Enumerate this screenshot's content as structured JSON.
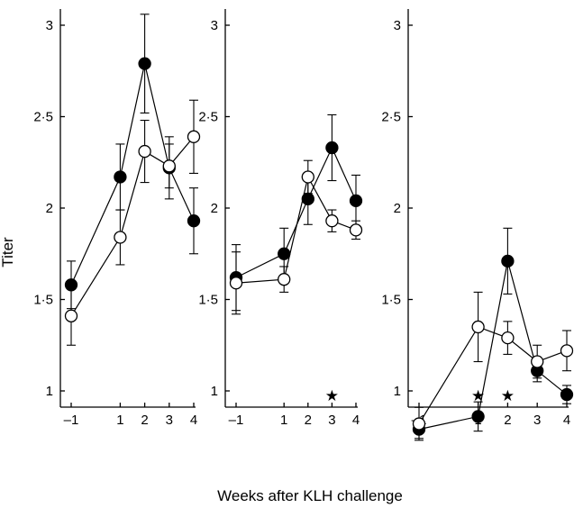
{
  "chart_data": {
    "type": "line",
    "ylabel": "Titer",
    "xlabel": "Weeks after KLH challenge",
    "xticks": [
      -1,
      1,
      2,
      3,
      4
    ],
    "xtick_labels": [
      "–1",
      "1",
      "2",
      "3",
      "4"
    ],
    "yticks": [
      1,
      1.5,
      2,
      2.5,
      3
    ],
    "ytick_labels": [
      "1",
      "1·5",
      "2",
      "2·5",
      "3"
    ],
    "ylim": [
      0.7,
      3.1
    ],
    "xlim": [
      -1.2,
      4.1
    ],
    "panels": [
      {
        "series": [
          {
            "marker": "filled",
            "x": [
              -1,
              1,
              2,
              3,
              4
            ],
            "y": [
              1.58,
              2.17,
              2.79,
              2.22,
              1.93
            ],
            "err": [
              0.13,
              0.18,
              0.27,
              0.17,
              0.18
            ]
          },
          {
            "marker": "open",
            "x": [
              -1,
              1,
              2,
              3,
              4
            ],
            "y": [
              1.41,
              1.84,
              2.31,
              2.23,
              2.39
            ],
            "err": [
              0.16,
              0.15,
              0.17,
              0.12,
              0.2
            ]
          }
        ],
        "stars": []
      },
      {
        "series": [
          {
            "marker": "filled",
            "x": [
              -1,
              1,
              2,
              3,
              4
            ],
            "y": [
              1.62,
              1.75,
              2.05,
              2.33,
              2.04
            ],
            "err": [
              0.18,
              0.14,
              0.14,
              0.18,
              0.14
            ]
          },
          {
            "marker": "open",
            "x": [
              -1,
              1,
              2,
              3,
              4
            ],
            "y": [
              1.59,
              1.61,
              2.17,
              1.93,
              1.88
            ],
            "err": [
              0.17,
              0.07,
              0.09,
              0.06,
              0.05
            ]
          }
        ],
        "stars": [
          3
        ]
      },
      {
        "series": [
          {
            "marker": "filled",
            "x": [
              -1,
              1,
              2,
              3,
              4
            ],
            "y": [
              0.79,
              0.86,
              1.71,
              1.11,
              0.98
            ],
            "err": [
              0.05,
              0.08,
              0.18,
              0.06,
              0.05
            ]
          },
          {
            "marker": "open",
            "x": [
              -1,
              1,
              2,
              3,
              4
            ],
            "y": [
              0.82,
              1.35,
              1.29,
              1.16,
              1.22
            ],
            "err": [
              0.09,
              0.19,
              0.09,
              0.09,
              0.11
            ]
          }
        ],
        "stars": [
          1,
          2
        ]
      }
    ]
  }
}
